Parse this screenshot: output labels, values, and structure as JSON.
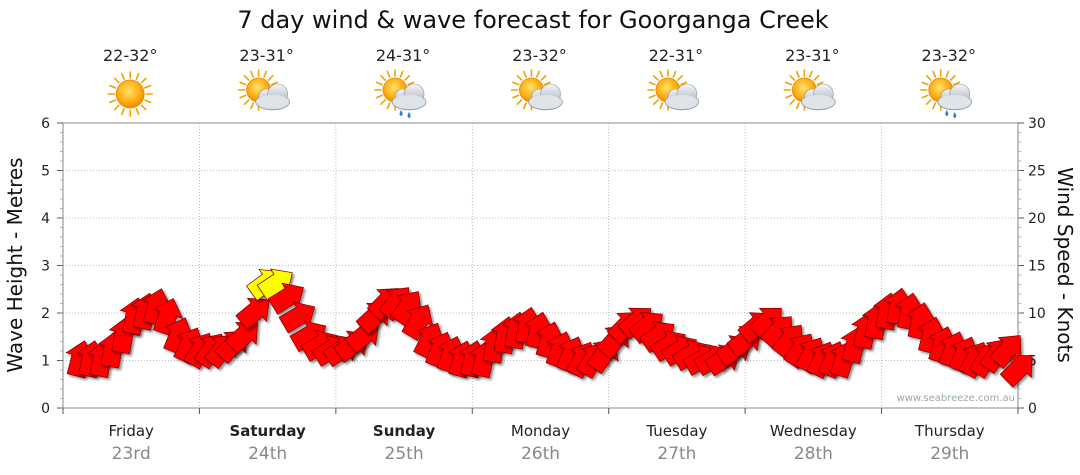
{
  "chart_data": {
    "type": "line",
    "title": "7 day wind & wave forecast for Goorganga Creek",
    "ylabel_left": "Wave Height - Metres",
    "ylabel_right": "Wind Speed - Knots",
    "ylim_left": [
      0,
      6
    ],
    "ylim_right": [
      0,
      30
    ],
    "left_ticks": [
      "0",
      "1",
      "2",
      "3",
      "4",
      "5",
      "6"
    ],
    "right_ticks": [
      "0",
      "5",
      "10",
      "15",
      "20",
      "25",
      "30"
    ],
    "grid": true,
    "watermark": "www.seabreeze.com.au",
    "days": [
      {
        "name": "Friday",
        "date": "23rd",
        "bold": false,
        "temp": "22-32°",
        "weather": "sunny-icon"
      },
      {
        "name": "Saturday",
        "date": "24th",
        "bold": true,
        "temp": "23-31°",
        "weather": "partly-cloudy-icon"
      },
      {
        "name": "Sunday",
        "date": "25th",
        "bold": true,
        "temp": "24-31°",
        "weather": "showers-icon"
      },
      {
        "name": "Monday",
        "date": "26th",
        "bold": false,
        "temp": "23-32°",
        "weather": "partly-cloudy-icon"
      },
      {
        "name": "Tuesday",
        "date": "27th",
        "bold": false,
        "temp": "22-31°",
        "weather": "partly-cloudy-icon"
      },
      {
        "name": "Wednesday",
        "date": "28th",
        "bold": false,
        "temp": "23-31°",
        "weather": "partly-cloudy-icon"
      },
      {
        "name": "Thursday",
        "date": "29th",
        "bold": false,
        "temp": "23-32°",
        "weather": "showers-icon"
      }
    ],
    "series": [
      {
        "unit": "knots",
        "color": "#ff0000",
        "highlight_color": "#ffff00",
        "x_days": [
          0.0,
          0.08,
          0.16,
          0.24,
          0.32,
          0.4,
          0.48,
          0.56,
          0.64,
          0.72,
          0.8,
          0.88,
          0.96,
          1.04,
          1.12,
          1.2,
          1.28,
          1.36,
          1.44,
          1.52,
          1.6,
          1.68,
          1.76,
          1.84,
          1.92,
          2.0,
          2.08,
          2.16,
          2.24,
          2.32,
          2.4,
          2.48,
          2.56,
          2.64,
          2.72,
          2.8,
          2.88,
          2.96,
          3.04,
          3.12,
          3.2,
          3.28,
          3.36,
          3.44,
          3.52,
          3.6,
          3.68,
          3.76,
          3.84,
          3.92,
          4.0,
          4.08,
          4.16,
          4.24,
          4.32,
          4.4,
          4.48,
          4.56,
          4.64,
          4.72,
          4.8,
          4.88,
          4.96,
          5.04,
          5.12,
          5.2,
          5.28,
          5.36,
          5.44,
          5.52,
          5.6,
          5.68,
          5.76,
          5.84,
          5.92,
          6.0,
          6.08,
          6.16,
          6.24,
          6.32,
          6.4,
          6.48,
          6.56,
          6.64,
          6.72,
          6.8,
          6.88
        ],
        "values": [
          4.5,
          4.5,
          4.5,
          5.5,
          7,
          9,
          9.5,
          10,
          9,
          7,
          6,
          5.5,
          5.5,
          5.5,
          6,
          7,
          9.5,
          12.5,
          12.5,
          11,
          9,
          7,
          6,
          5.5,
          5.5,
          6,
          7,
          9,
          10.5,
          10.5,
          10,
          8.5,
          6.5,
          5.5,
          5,
          4.5,
          4.5,
          4.5,
          6,
          7,
          7.5,
          8,
          7.5,
          6.5,
          5.5,
          5,
          4.5,
          4.5,
          5,
          6.5,
          8,
          8.5,
          8,
          7,
          6,
          5.5,
          5,
          4.5,
          4.5,
          4.5,
          5.5,
          6.5,
          8,
          8.5,
          7.5,
          6.5,
          5.5,
          5,
          4.5,
          4.5,
          4.5,
          6,
          7.5,
          8.5,
          9.5,
          10,
          9.5,
          8.5,
          7,
          6,
          5.5,
          5,
          4.5,
          4.5,
          5,
          5.5,
          3.5
        ],
        "highlight_values_knots_min": 12
      }
    ]
  }
}
